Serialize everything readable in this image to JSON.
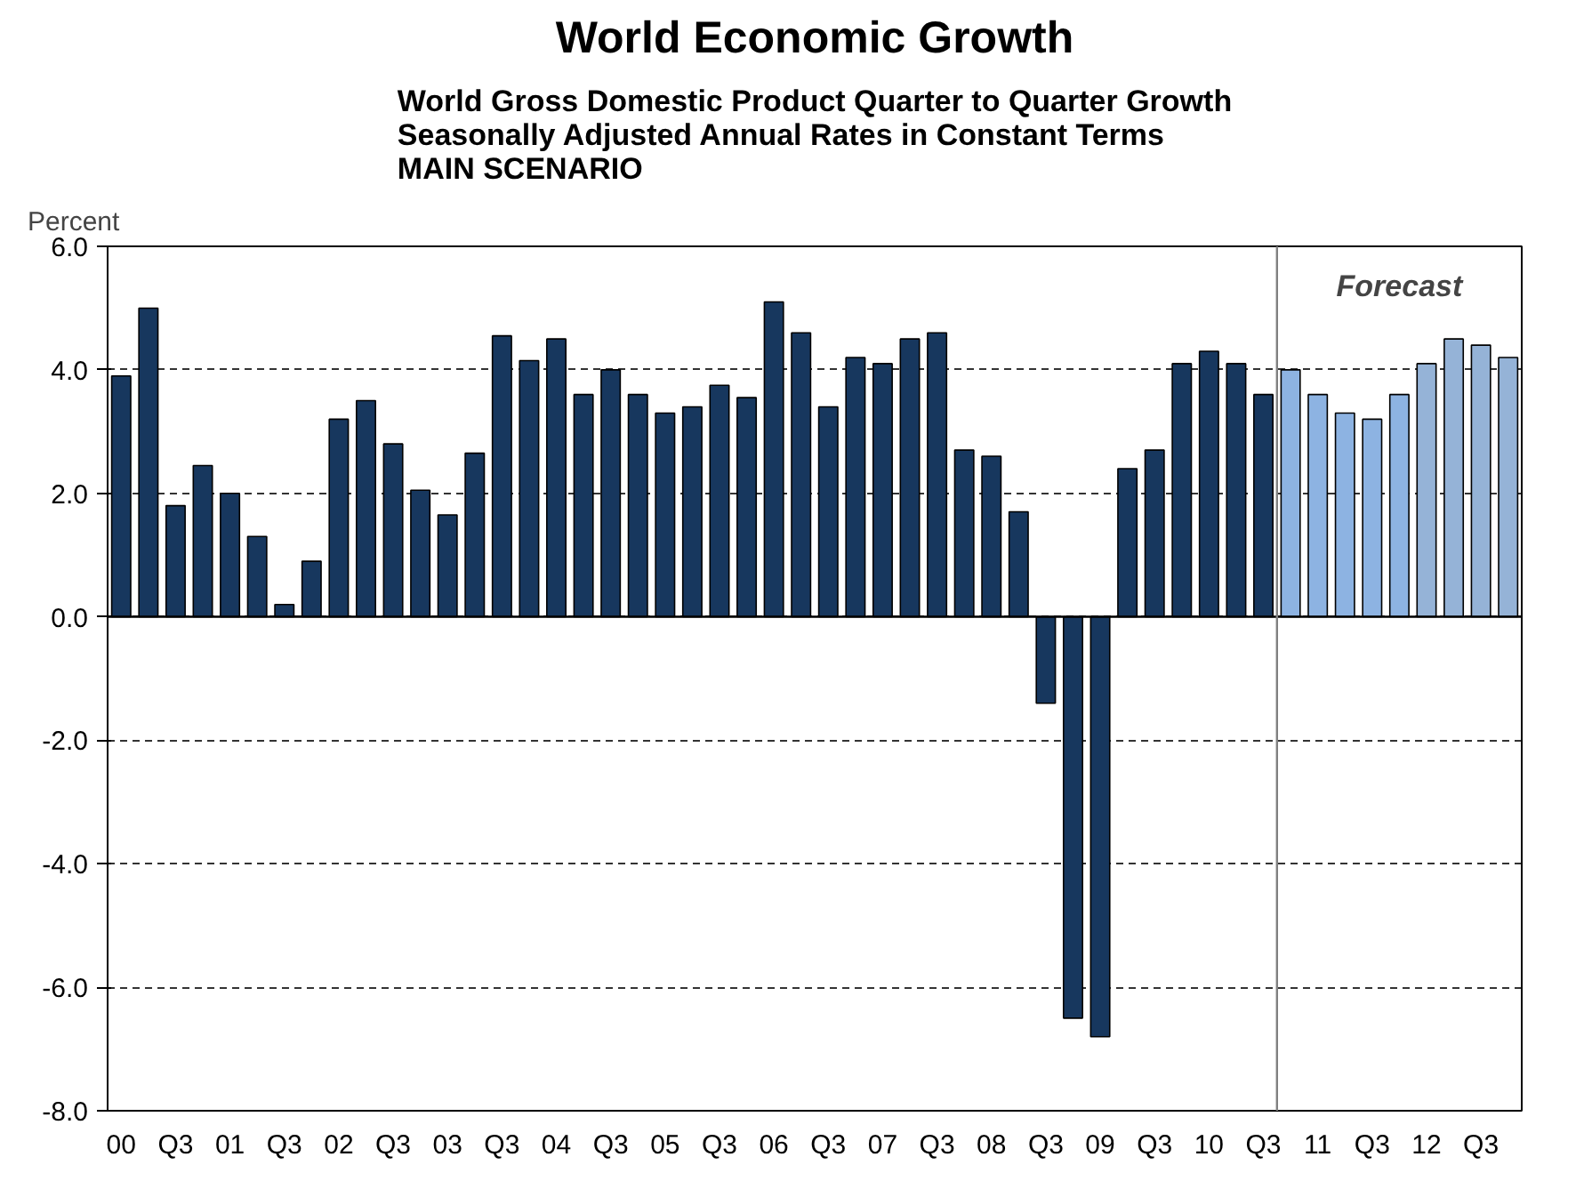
{
  "chart_data": {
    "type": "bar",
    "title": "World Economic Growth",
    "subtitle": "World Gross Domestic Product Quarter to Quarter Growth\nSeasonally Adjusted Annual Rates in Constant Terms\nMAIN SCENARIO",
    "ylabel": "Percent",
    "x": [
      2000,
      2000.25,
      2000.5,
      2000.75,
      2001,
      2001.25,
      2001.5,
      2001.75,
      2002,
      2002.25,
      2002.5,
      2002.75,
      2003,
      2003.25,
      2003.5,
      2003.75,
      2004,
      2004.25,
      2004.5,
      2004.75,
      2005,
      2005.25,
      2005.5,
      2005.75,
      2006,
      2006.25,
      2006.5,
      2006.75,
      2007,
      2007.25,
      2007.5,
      2007.75,
      2008,
      2008.25,
      2008.5,
      2008.75,
      2009,
      2009.25,
      2009.5,
      2009.75,
      2010,
      2010.25,
      2010.5,
      2010.75,
      2011,
      2011.25,
      2011.5,
      2011.75,
      2012,
      2012.25,
      2012.5,
      2012.75
    ],
    "values": [
      3.9,
      5.0,
      1.8,
      2.45,
      2.0,
      1.3,
      0.2,
      0.9,
      3.2,
      3.5,
      2.8,
      2.05,
      1.65,
      2.65,
      4.55,
      4.15,
      4.5,
      3.6,
      4.0,
      3.6,
      3.3,
      3.4,
      3.75,
      3.55,
      5.1,
      4.6,
      3.4,
      4.2,
      4.1,
      4.5,
      4.6,
      2.7,
      2.6,
      1.7,
      -1.4,
      -6.5,
      -6.8,
      2.4,
      2.7,
      4.1,
      4.3,
      4.1,
      3.6,
      4.0,
      3.6,
      3.3,
      3.2,
      3.6,
      4.1,
      4.5,
      4.4,
      4.2
    ],
    "colors": [
      "#17375e",
      "#17375e",
      "#17375e",
      "#17375e",
      "#17375e",
      "#17375e",
      "#17375e",
      "#17375e",
      "#17375e",
      "#17375e",
      "#17375e",
      "#17375e",
      "#17375e",
      "#17375e",
      "#17375e",
      "#17375e",
      "#17375e",
      "#17375e",
      "#17375e",
      "#17375e",
      "#17375e",
      "#17375e",
      "#17375e",
      "#17375e",
      "#17375e",
      "#17375e",
      "#17375e",
      "#17375e",
      "#17375e",
      "#17375e",
      "#17375e",
      "#17375e",
      "#17375e",
      "#17375e",
      "#17375e",
      "#17375e",
      "#17375e",
      "#17375e",
      "#17375e",
      "#17375e",
      "#17375e",
      "#17375e",
      "#17375e",
      "#8db3e2",
      "#8db3e2",
      "#8db3e2",
      "#8db3e2",
      "#8db3e2",
      "#95b3d7",
      "#95b3d7",
      "#95b3d7",
      "#95b3d7"
    ],
    "xlim": [
      1999.875,
      2012.875
    ],
    "xticks": [
      {
        "value": 2000,
        "label": "00"
      },
      {
        "value": 2000.5,
        "label": "Q3"
      },
      {
        "value": 2001,
        "label": "01"
      },
      {
        "value": 2001.5,
        "label": "Q3"
      },
      {
        "value": 2002,
        "label": "02"
      },
      {
        "value": 2002.5,
        "label": "Q3"
      },
      {
        "value": 2003,
        "label": "03"
      },
      {
        "value": 2003.5,
        "label": "Q3"
      },
      {
        "value": 2004,
        "label": "04"
      },
      {
        "value": 2004.5,
        "label": "Q3"
      },
      {
        "value": 2005,
        "label": "05"
      },
      {
        "value": 2005.5,
        "label": "Q3"
      },
      {
        "value": 2006,
        "label": "06"
      },
      {
        "value": 2006.5,
        "label": "Q3"
      },
      {
        "value": 2007,
        "label": "07"
      },
      {
        "value": 2007.5,
        "label": "Q3"
      },
      {
        "value": 2008,
        "label": "08"
      },
      {
        "value": 2008.5,
        "label": "Q3"
      },
      {
        "value": 2009,
        "label": "09"
      },
      {
        "value": 2009.5,
        "label": "Q3"
      },
      {
        "value": 2010,
        "label": "10"
      },
      {
        "value": 2010.5,
        "label": "Q3"
      },
      {
        "value": 2011,
        "label": "11"
      },
      {
        "value": 2011.5,
        "label": "Q3"
      },
      {
        "value": 2012,
        "label": "12"
      },
      {
        "value": 2012.5,
        "label": "Q3"
      }
    ],
    "ylim": [
      -8,
      6
    ],
    "yticks": [
      {
        "value": -8,
        "label": "-8.0"
      },
      {
        "value": -6,
        "label": "-6.0"
      },
      {
        "value": -4,
        "label": "-4.0"
      },
      {
        "value": -2,
        "label": "-2.0"
      },
      {
        "value": 0,
        "label": "0.0"
      },
      {
        "value": 2,
        "label": "2.0"
      },
      {
        "value": 4,
        "label": "4.0"
      },
      {
        "value": 6,
        "label": "6.0"
      }
    ],
    "ref_lines": [
      {
        "axis": "x",
        "value": 2010.625,
        "label": "Forecast",
        "color": "#808080"
      }
    ],
    "grid": "y"
  }
}
